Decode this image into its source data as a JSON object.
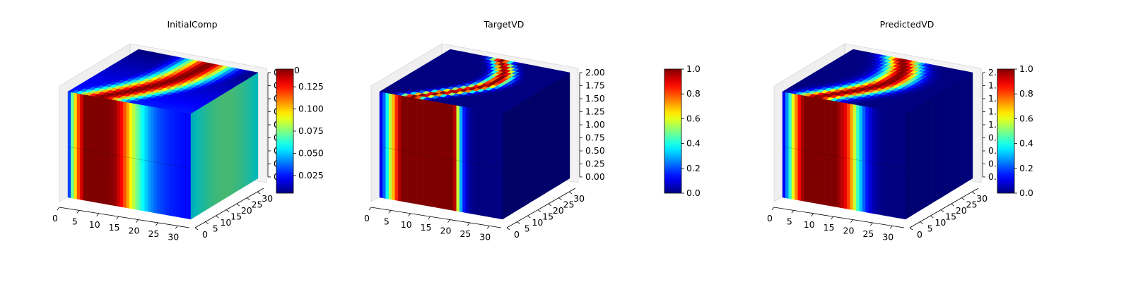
{
  "figure": {
    "background": "#ffffff",
    "colormap": "jet"
  },
  "chart_data": [
    {
      "type": "heatmap",
      "subtype": "3d-voxel-cube",
      "title": "InitialComp",
      "x_ticks": [
        "0",
        "5",
        "10",
        "15",
        "20",
        "25",
        "30"
      ],
      "y_ticks": [
        "0",
        "5",
        "10",
        "15",
        "20",
        "25",
        "30"
      ],
      "z_ticks": [
        "0.00",
        "0.25",
        "0.50",
        "0.75",
        "1.00",
        "1.25",
        "1.50",
        "1.75",
        "2.00"
      ],
      "z_tick_labels_visible": [
        "0",
        "0",
        "0",
        "0",
        "0",
        "0",
        "0",
        "0",
        "0"
      ],
      "xlim": [
        0,
        33
      ],
      "ylim": [
        0,
        33
      ],
      "zlim": [
        0,
        2
      ],
      "colorbar": {
        "min": 0.005,
        "max": 0.145,
        "ticks": [
          "0.025",
          "0.050",
          "0.075",
          "0.100",
          "0.125"
        ],
        "top_label_partial": "0"
      },
      "front_face_profile": [
        0.05,
        0.55,
        0.8,
        1.0,
        1.0,
        1.0,
        1.0,
        1.0,
        1.0,
        0.97,
        0.88,
        0.75,
        0.6,
        0.48,
        0.38,
        0.3,
        0.24,
        0.2,
        0.18,
        0.16,
        0.15,
        0.14,
        0.13,
        0.13
      ],
      "top_face_band": "curved high-value band from front-left bending toward back",
      "right_face_level": 0.3
    },
    {
      "type": "heatmap",
      "subtype": "3d-voxel-cube",
      "title": "TargetVD",
      "x_ticks": [
        "0",
        "5",
        "10",
        "15",
        "20",
        "25",
        "30"
      ],
      "y_ticks": [
        "0",
        "5",
        "10",
        "15",
        "20",
        "25",
        "30"
      ],
      "z_ticks": [
        "0.00",
        "0.25",
        "0.50",
        "0.75",
        "1.00",
        "1.25",
        "1.50",
        "1.75",
        "2.00"
      ],
      "xlim": [
        0,
        33
      ],
      "ylim": [
        0,
        33
      ],
      "zlim": [
        0,
        2
      ],
      "colorbar": {
        "min": 0.0,
        "max": 1.0,
        "ticks": [
          "0.0",
          "0.2",
          "0.4",
          "0.6",
          "0.8",
          "1.0"
        ]
      },
      "front_face_profile": [
        0.05,
        0.25,
        0.55,
        0.8,
        1.0,
        1.0,
        1.0,
        1.0,
        1.0,
        1.0,
        1.0,
        1.0,
        1.0,
        1.0,
        1.0,
        0.35,
        0.1,
        0.02,
        0.0,
        0.0,
        0.0,
        0.0,
        0.0,
        0.0
      ],
      "top_face_band": "narrow S-shaped band",
      "right_face_level": 0.02
    },
    {
      "type": "heatmap",
      "subtype": "3d-voxel-cube",
      "title": "PredictedVD",
      "x_ticks": [
        "0",
        "5",
        "10",
        "15",
        "20",
        "25",
        "30"
      ],
      "y_ticks": [
        "0",
        "5",
        "10",
        "15",
        "20",
        "25",
        "30"
      ],
      "z_ticks": [
        "0.00",
        "0.25",
        "0.50",
        "0.75",
        "1.00",
        "1.25",
        "1.50",
        "1.75",
        "2.00"
      ],
      "xlim": [
        0,
        33
      ],
      "ylim": [
        0,
        33
      ],
      "zlim": [
        0,
        2
      ],
      "colorbar": {
        "min": 0.0,
        "max": 1.0,
        "ticks": [
          "0.0",
          "0.2",
          "0.4",
          "0.6",
          "0.8",
          "1.0"
        ]
      },
      "front_face_profile": [
        0.05,
        0.3,
        0.6,
        0.85,
        1.0,
        1.0,
        1.0,
        1.0,
        1.0,
        1.0,
        1.0,
        0.95,
        0.88,
        0.7,
        0.45,
        0.25,
        0.12,
        0.05,
        0.02,
        0.0,
        0.0,
        0.0,
        0.0,
        0.0
      ],
      "top_face_band": "wide S-shaped band, smoother than target",
      "right_face_level": 0.04
    }
  ]
}
